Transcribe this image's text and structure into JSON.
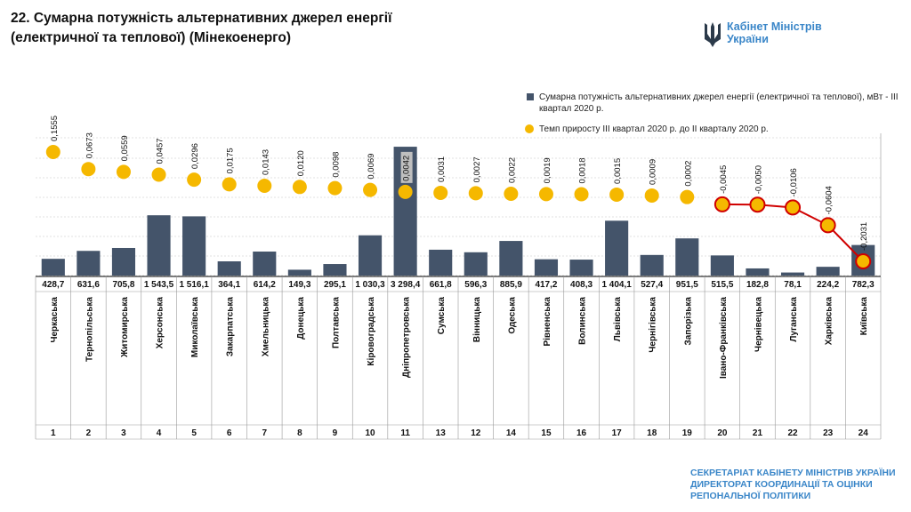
{
  "title_lines": [
    "22. Сумарна потужність альтернативних джерел енергії",
    "(електричної та теплової) (Мінекоенерго)"
  ],
  "logo": {
    "line1": "Кабінет Міністрів",
    "line2": "України"
  },
  "legend": {
    "bar": "Сумарна потужність альтернативних джерел енергії (електричної та теплової), мВт - ІІІ квартал 2020 р.",
    "dot": "Темп приросту ІІІ квартал 2020 р. до ІІ кварталу 2020 р."
  },
  "footer_lines": [
    "СЕКРЕТАРІАТ КАБІНЕТУ МІНІСТРІВ УКРАЇНИ",
    "ДИРЕКТОРАТ КООРДИНАЦІЇ ТА ОЦІНКИ",
    "РЕПОНАЛЬНОЇ ПОЛІТИКИ"
  ],
  "colors": {
    "bar": "#44546a",
    "dot": "#f5b800",
    "negative_line": "#d00000",
    "grid": "#d9d9d9"
  },
  "chart_data": {
    "type": "bar",
    "categories": [
      "Черкаська",
      "Тернопільська",
      "Житомирська",
      "Херсонська",
      "Миколаївська",
      "Закарпатська",
      "Хмельницька",
      "Донецька",
      "Полтавська",
      "Кіровоградська",
      "Дніпропетровська",
      "Сумська",
      "Вінницька",
      "Одеська",
      "Рівненська",
      "Волинська",
      "Львівська",
      "Чернігівська",
      "Запорізька",
      "Івано-Франківська",
      "Чернівецька",
      "Луганська",
      "Харківська",
      "Київська"
    ],
    "ranks": [
      "1",
      "2",
      "3",
      "4",
      "5",
      "6",
      "7",
      "8",
      "9",
      "10",
      "11",
      "13",
      "12",
      "14",
      "15",
      "16",
      "17",
      "18",
      "19",
      "20",
      "21",
      "22",
      "23",
      "24"
    ],
    "series": [
      {
        "name": "Сумарна потужність альтернативних джерел енергії (електричної та теплової), мВт - ІІІ квартал 2020 р.",
        "type": "bar",
        "values": [
          428.7,
          631.6,
          705.8,
          1543.5,
          1516.1,
          364.1,
          614.2,
          149.3,
          295.1,
          1030.3,
          3298.4,
          661.8,
          596.3,
          885.9,
          417.2,
          408.3,
          1404.1,
          527.4,
          951.5,
          515.5,
          182.8,
          78.1,
          224.2,
          782.3
        ],
        "labels": [
          "428,7",
          "631,6",
          "705,8",
          "1 543,5",
          "1 516,1",
          "364,1",
          "614,2",
          "149,3",
          "295,1",
          "1 030,3",
          "3 298,4",
          "661,8",
          "596,3",
          "885,9",
          "417,2",
          "408,3",
          "1 404,1",
          "527,4",
          "951,5",
          "515,5",
          "182,8",
          "78,1",
          "224,2",
          "782,3"
        ]
      },
      {
        "name": "Темп приросту ІІІ квартал 2020 р. до ІІ кварталу 2020 р.",
        "type": "line",
        "values": [
          0.1555,
          0.0673,
          0.0559,
          0.0457,
          0.0296,
          0.0175,
          0.0143,
          0.012,
          0.0098,
          0.0069,
          0.0042,
          0.0031,
          0.0027,
          0.0022,
          0.0019,
          0.0018,
          0.0015,
          0.0009,
          0.0002,
          -0.0045,
          -0.005,
          -0.0106,
          -0.0604,
          -0.2031
        ],
        "labels": [
          "0,1555",
          "0,0673",
          "0,0559",
          "0,0457",
          "0,0296",
          "0,0175",
          "0,0143",
          "0,0120",
          "0,0098",
          "0,0069",
          "0,0042",
          "0,0031",
          "0,0027",
          "0,0022",
          "0,0019",
          "0,0018",
          "0,0015",
          "0,0009",
          "0,0002",
          "-0,0045",
          "-0,0050",
          "-0,0106",
          "-0,0604",
          "-0,2031"
        ]
      }
    ],
    "ylim": [
      0,
      3300
    ],
    "grid": true,
    "legend_position": "top-right"
  }
}
